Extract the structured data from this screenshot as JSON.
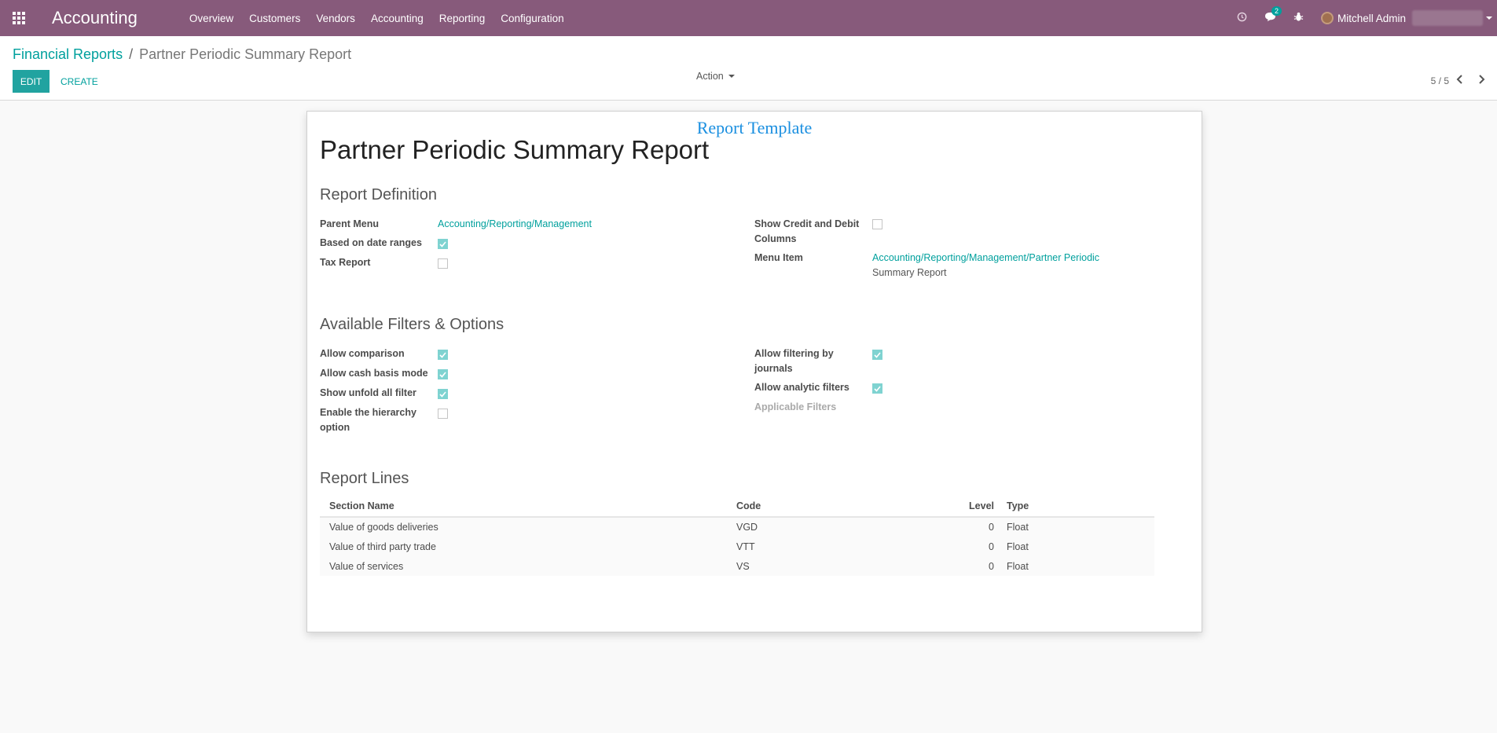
{
  "navbar": {
    "brand": "Accounting",
    "menu": [
      "Overview",
      "Customers",
      "Vendors",
      "Accounting",
      "Reporting",
      "Configuration"
    ],
    "message_count": "2",
    "user_name": "Mitchell Admin"
  },
  "breadcrumb": {
    "parent": "Financial Reports",
    "current": "Partner Periodic Summary Report"
  },
  "buttons": {
    "edit": "EDIT",
    "create": "CREATE",
    "action": "Action"
  },
  "pager": {
    "value": "5 / 5"
  },
  "sheet": {
    "template_label": "Report Template",
    "title": "Partner Periodic Summary Report",
    "report_definition": {
      "heading": "Report Definition",
      "parent_menu_label": "Parent Menu",
      "parent_menu_value": "Accounting/Reporting/Management",
      "date_ranges_label": "Based on date ranges",
      "date_ranges_checked": true,
      "tax_report_label": "Tax Report",
      "tax_report_checked": false,
      "credit_debit_label": "Show Credit and Debit Columns",
      "credit_debit_checked": false,
      "menu_item_label": "Menu Item",
      "menu_item_value_line1": "Accounting/Reporting/Management/Partner Periodic",
      "menu_item_value_line2": "Summary Report"
    },
    "filters": {
      "heading": "Available Filters & Options",
      "allow_comparison_label": "Allow comparison",
      "allow_comparison_checked": true,
      "cash_basis_label": "Allow cash basis mode",
      "cash_basis_checked": true,
      "unfold_all_label": "Show unfold all filter",
      "unfold_all_checked": true,
      "hierarchy_label": "Enable the hierarchy option",
      "hierarchy_checked": false,
      "filter_journals_label": "Allow filtering by journals",
      "filter_journals_checked": true,
      "analytic_label": "Allow analytic filters",
      "analytic_checked": true,
      "applicable_filters_label": "Applicable Filters"
    },
    "report_lines": {
      "heading": "Report Lines",
      "columns": {
        "name": "Section Name",
        "code": "Code",
        "level": "Level",
        "type": "Type"
      },
      "rows": [
        {
          "name": "Value of goods deliveries",
          "code": "VGD",
          "level": "0",
          "type": "Float"
        },
        {
          "name": "Value of third party trade",
          "code": "VTT",
          "level": "0",
          "type": "Float"
        },
        {
          "name": "Value of services",
          "code": "VS",
          "level": "0",
          "type": "Float"
        }
      ]
    }
  }
}
